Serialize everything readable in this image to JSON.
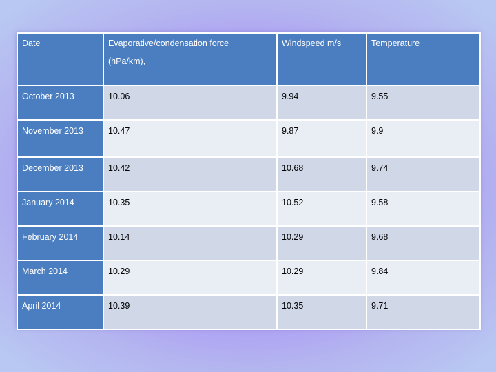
{
  "table": {
    "headers": {
      "date": "Date",
      "force_line1": "Evaporative/condensation force",
      "force_line2": "(hPa/km),",
      "windspeed": "Windspeed m/s",
      "temperature": "Temperature"
    },
    "rows": [
      {
        "date": "October 2013",
        "force": "10.06",
        "windspeed": "9.94",
        "temperature": "9.55"
      },
      {
        "date": "November 2013",
        "force": "10.47",
        "windspeed": "9.87",
        "temperature": "9.9"
      },
      {
        "date": "December  2013",
        "force": "10.42",
        "windspeed": "10.68",
        "temperature": "9.74"
      },
      {
        "date": "January 2014",
        "force": "10.35",
        "windspeed": "10.52",
        "temperature": "9.58"
      },
      {
        "date": "February 2014",
        "force": "10.14",
        "windspeed": "10.29",
        "temperature": "9.68"
      },
      {
        "date": "March 2014",
        "force": "10.29",
        "windspeed": "10.29",
        "temperature": "9.84"
      },
      {
        "date": "April 2014",
        "force": "10.39",
        "windspeed": "10.35",
        "temperature": "9.71"
      }
    ]
  },
  "colors": {
    "header": "#4b7ec0",
    "row_odd": "#d0d8e8",
    "row_even": "#e9edf4",
    "background": "#a993f5"
  }
}
